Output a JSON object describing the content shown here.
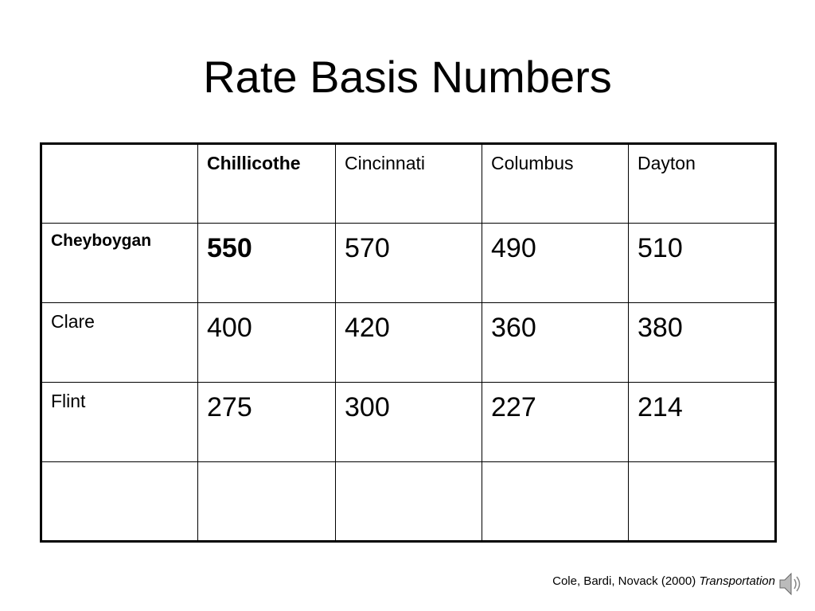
{
  "title": "Rate Basis Numbers",
  "table": {
    "columns": [
      "Chillicothe",
      "Cincinnati",
      "Columbus",
      "Dayton"
    ],
    "rows": [
      {
        "label": "Cheyboygan",
        "values": [
          550,
          570,
          490,
          510
        ]
      },
      {
        "label": "Clare",
        "values": [
          400,
          420,
          360,
          380
        ]
      },
      {
        "label": "Flint",
        "values": [
          275,
          300,
          227,
          214
        ]
      }
    ]
  },
  "citation": {
    "text": "Cole, Bardi, Novack (2000)",
    "source": "Transportation"
  }
}
